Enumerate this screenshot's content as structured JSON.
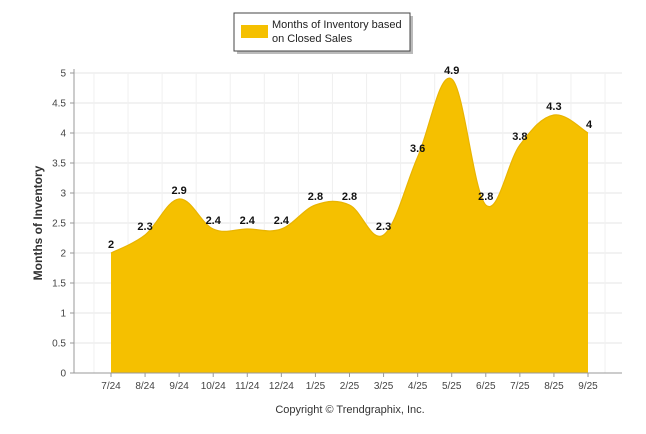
{
  "chart_data": {
    "type": "area",
    "categories": [
      "7/24",
      "8/24",
      "9/24",
      "10/24",
      "11/24",
      "12/24",
      "1/25",
      "2/25",
      "3/25",
      "4/25",
      "5/25",
      "6/25",
      "7/25",
      "8/25",
      "9/25"
    ],
    "series": [
      {
        "name_lines": [
          "Months of Inventory based",
          "on Closed Sales"
        ],
        "values": [
          2,
          2.3,
          2.9,
          2.4,
          2.4,
          2.4,
          2.8,
          2.8,
          2.3,
          3.6,
          4.9,
          2.8,
          3.8,
          4.3,
          4
        ],
        "labels": [
          "2",
          "2.3",
          "2.9",
          "2.4",
          "2.4",
          "2.4",
          "2.8",
          "2.8",
          "2.3",
          "3.6",
          "4.9",
          "2.8",
          "3.8",
          "4.3",
          "4"
        ],
        "color": "#F5C000"
      }
    ],
    "ylabel": "Months of Inventory",
    "ylim": [
      0,
      5
    ],
    "yticks": [
      "0",
      "0.5",
      "1",
      "1.5",
      "2",
      "2.5",
      "3",
      "3.5",
      "4",
      "4.5",
      "5"
    ],
    "grid": true,
    "legend_position": "top-center"
  },
  "footer": {
    "copyright": "Copyright © Trendgraphix, Inc."
  },
  "colors": {
    "grid": "#e6e6e6",
    "axis": "#999999"
  }
}
